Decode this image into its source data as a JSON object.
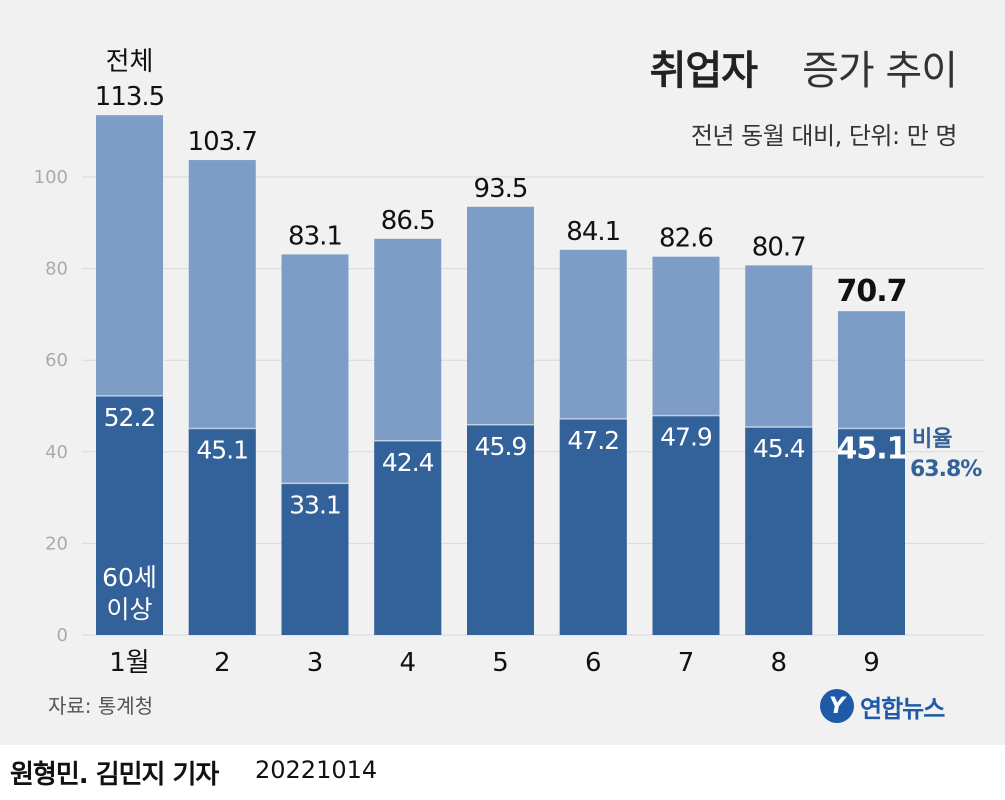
{
  "header": {
    "title_bold": "취업자",
    "title_rest": "증가 추이",
    "subtitle": "전년 동월 대비, 단위: 만 명"
  },
  "source": "자료: 통계청",
  "logo": {
    "mark": "Y",
    "text": "연합뉴스"
  },
  "credit": {
    "authors": "원형민. 김민지 기자",
    "date": "20221014"
  },
  "colors": {
    "total_bar": "#7d9dc6",
    "over60_bar": "#33619a",
    "background": "#f1f1f1",
    "grid": "#d9d9d9"
  },
  "chart_data": {
    "type": "bar",
    "categories": [
      "1월",
      "2",
      "3",
      "4",
      "5",
      "6",
      "7",
      "8",
      "9"
    ],
    "series": [
      {
        "name": "전체",
        "values": [
          113.5,
          103.7,
          83.1,
          86.5,
          93.5,
          84.1,
          82.6,
          80.7,
          70.7
        ]
      },
      {
        "name": "60세 이상",
        "values": [
          52.2,
          45.1,
          33.1,
          42.4,
          45.9,
          47.2,
          47.9,
          45.4,
          45.1
        ]
      }
    ],
    "yticks": [
      "0",
      "20",
      "40",
      "60",
      "80",
      "100"
    ],
    "ylim": [
      0,
      120
    ],
    "grid": true,
    "annotations": {
      "first_total_label": "전체",
      "first_over60_label": "60세 이상",
      "ratio_label": "비율",
      "ratio_value": "63.8%"
    }
  }
}
